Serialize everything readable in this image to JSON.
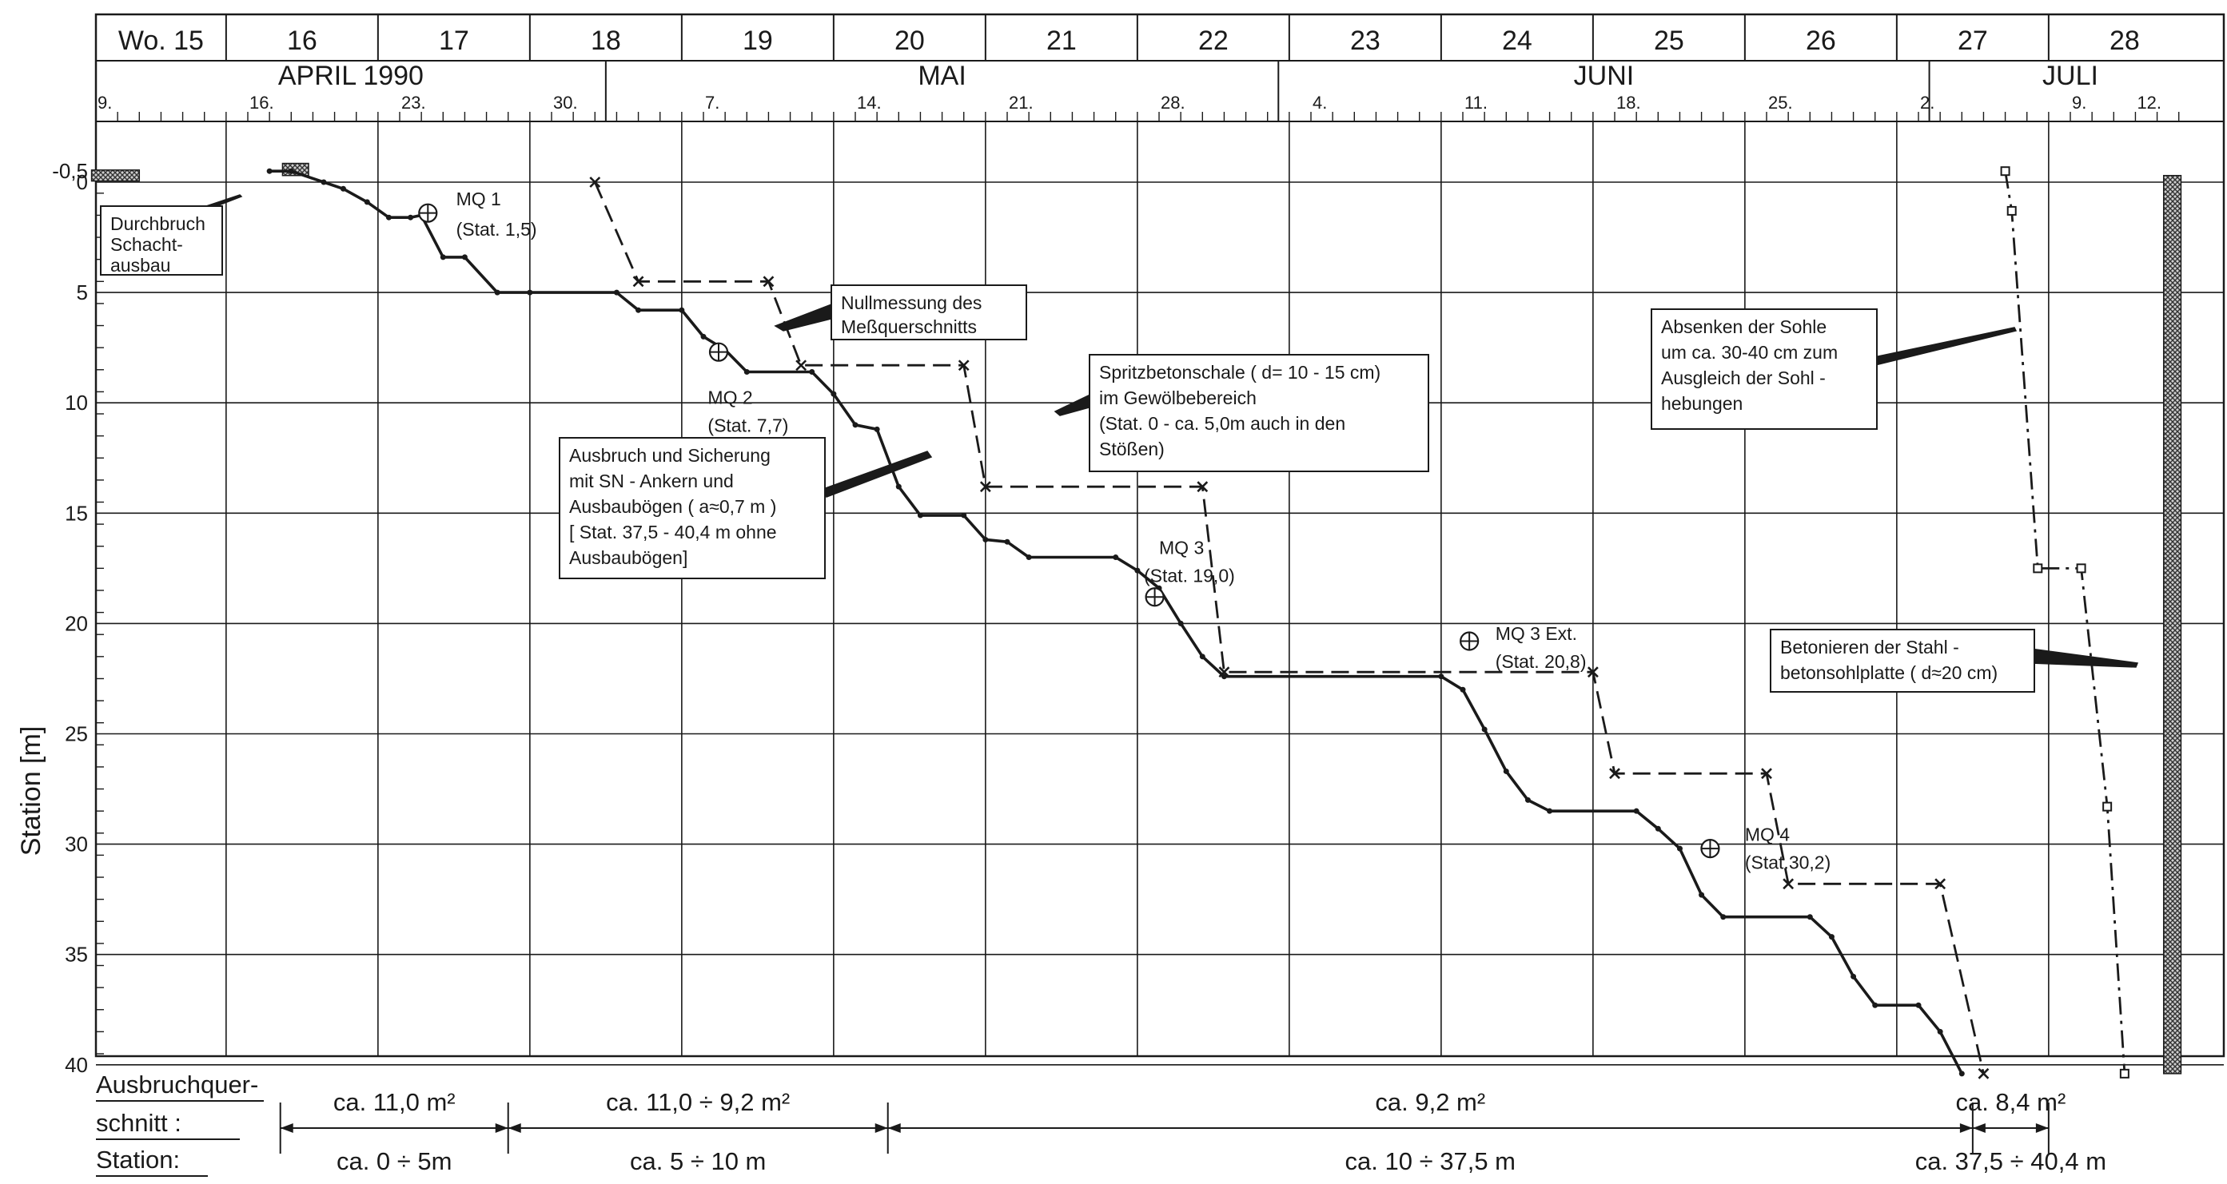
{
  "chart_data": {
    "type": "line",
    "ylabel": "Station [m]",
    "y_axis": {
      "range": [
        -0.5,
        40
      ],
      "ticks": [
        "-0,5",
        "0",
        "5",
        "10",
        "15",
        "20",
        "25",
        "30",
        "35",
        "40"
      ],
      "inverted": true
    },
    "weeks": [
      "Wo. 15",
      "16",
      "17",
      "18",
      "19",
      "20",
      "21",
      "22",
      "23",
      "24",
      "25",
      "26",
      "27",
      "28"
    ],
    "months": [
      {
        "label": "APRIL 1990",
        "start": 0,
        "end": 24
      },
      {
        "label": "MAI",
        "start": 24,
        "end": 55
      },
      {
        "label": "JUNI",
        "start": 55,
        "end": 85
      },
      {
        "label": "JULI",
        "start": 85,
        "end": 98
      }
    ],
    "day_labels": [
      {
        "text": "9.",
        "d": 0
      },
      {
        "text": "16.",
        "d": 7
      },
      {
        "text": "23.",
        "d": 14
      },
      {
        "text": "30.",
        "d": 21
      },
      {
        "text": "7.",
        "d": 28
      },
      {
        "text": "14.",
        "d": 35
      },
      {
        "text": "21.",
        "d": 42
      },
      {
        "text": "28.",
        "d": 49
      },
      {
        "text": "4.",
        "d": 56
      },
      {
        "text": "11.",
        "d": 63
      },
      {
        "text": "18.",
        "d": 70
      },
      {
        "text": "25.",
        "d": 77
      },
      {
        "text": "2.",
        "d": 84
      },
      {
        "text": "9.",
        "d": 91
      },
      {
        "text": "12.",
        "d": 94
      }
    ],
    "series": [
      {
        "key": "ausbruch",
        "style": "solid",
        "points": [
          [
            8,
            -0.5
          ],
          [
            9,
            -0.5
          ],
          [
            10.5,
            0
          ],
          [
            11.4,
            0.3
          ],
          [
            12.5,
            0.9
          ],
          [
            13.5,
            1.6
          ],
          [
            14.5,
            1.6
          ],
          [
            15,
            1.5
          ],
          [
            16,
            3.4
          ],
          [
            17,
            3.4
          ],
          [
            18.5,
            5
          ],
          [
            20,
            5
          ],
          [
            24,
            5
          ],
          [
            25,
            5.8
          ],
          [
            27,
            5.8
          ],
          [
            28,
            7
          ],
          [
            29,
            7.6
          ],
          [
            30,
            8.6
          ],
          [
            33,
            8.6
          ],
          [
            34,
            9.6
          ],
          [
            35,
            11
          ],
          [
            36,
            11.2
          ],
          [
            37,
            13.8
          ],
          [
            38,
            15.1
          ],
          [
            40,
            15.1
          ],
          [
            41,
            16.2
          ],
          [
            42,
            16.3
          ],
          [
            43,
            17
          ],
          [
            47,
            17
          ],
          [
            48,
            17.6
          ],
          [
            49,
            18.4
          ],
          [
            50,
            20
          ],
          [
            51,
            21.5
          ],
          [
            52,
            22.4
          ],
          [
            62,
            22.4
          ],
          [
            63,
            23
          ],
          [
            64,
            24.8
          ],
          [
            65,
            26.7
          ],
          [
            66,
            28
          ],
          [
            67,
            28.5
          ],
          [
            71,
            28.5
          ],
          [
            72,
            29.3
          ],
          [
            73,
            30.2
          ],
          [
            74,
            32.3
          ],
          [
            75,
            33.3
          ],
          [
            79,
            33.3
          ],
          [
            80,
            34.2
          ],
          [
            81,
            36
          ],
          [
            82,
            37.3
          ],
          [
            84,
            37.3
          ],
          [
            85,
            38.5
          ],
          [
            86,
            40.4
          ]
        ]
      },
      {
        "key": "spritzbeton",
        "style": "dashed",
        "points": [
          [
            23,
            0
          ],
          [
            25,
            4.5
          ],
          [
            31,
            4.5
          ],
          [
            32.5,
            8.3
          ],
          [
            40,
            8.3
          ],
          [
            41,
            13.8
          ],
          [
            51,
            13.8
          ],
          [
            52,
            22.2
          ],
          [
            69,
            22.2
          ],
          [
            70,
            26.8
          ],
          [
            77,
            26.8
          ],
          [
            78,
            31.8
          ],
          [
            85,
            31.8
          ],
          [
            87,
            40.4
          ]
        ]
      },
      {
        "key": "sohle",
        "style": "dashdot",
        "points": [
          [
            88,
            -0.5
          ],
          [
            88.3,
            1.3
          ],
          [
            89.5,
            17.5
          ],
          [
            91.5,
            17.5
          ],
          [
            92.7,
            28.3
          ],
          [
            93.5,
            40.4
          ]
        ]
      }
    ],
    "measurements": [
      {
        "label": "MQ 1",
        "stat": "(Stat. 1,5)"
      },
      {
        "label": "MQ 2",
        "stat": "(Stat. 7,7)"
      },
      {
        "label": "MQ 3",
        "stat": "(Stat. 19,0)"
      },
      {
        "label": "MQ 3 Ext.",
        "stat": "(Stat. 20,8)"
      },
      {
        "label": "MQ 4",
        "stat": "(Stat.30,2)"
      }
    ],
    "annotations": {
      "durchbruch": [
        "Durchbruch",
        "Schacht-",
        "ausbau"
      ],
      "nullmessung": [
        "Nullmessung des",
        "Meßquerschnitts"
      ],
      "spritzbeton": [
        "Spritzbetonschale ( d= 10 - 15 cm)",
        "im Gewölbebereich",
        "(Stat. 0 - ca. 5,0m auch in den",
        "Stößen)"
      ],
      "ausbruch": [
        "Ausbruch und Sicherung",
        "mit SN - Ankern und",
        "Ausbaubögen ( a≈0,7 m )",
        "[ Stat. 37,5 - 40,4 m ohne",
        "Ausbaubögen]"
      ],
      "sohle": [
        "Absenken der Sohle",
        "um ca. 30-40 cm zum",
        "Ausgleich der Sohl -",
        "hebungen"
      ],
      "betonieren": [
        "Betonieren der Stahl -",
        "betonsohlplatte ( d≈20 cm)"
      ]
    },
    "footer": {
      "label1": "Ausbruchquer-",
      "label2": "schnitt :",
      "label3": "Station:",
      "spans": [
        {
          "area": "ca. 11,0 m²",
          "station": "ca. 0 ÷ 5m"
        },
        {
          "area": "ca. 11,0 ÷ 9,2 m²",
          "station": "ca.  5  ÷ 10  m"
        },
        {
          "area": "ca. 9,2  m²",
          "station": "ca. 10 ÷ 37,5  m"
        },
        {
          "area": "ca. 8,4 m²",
          "station": "ca. 37,5 ÷ 40,4 m"
        }
      ]
    }
  }
}
